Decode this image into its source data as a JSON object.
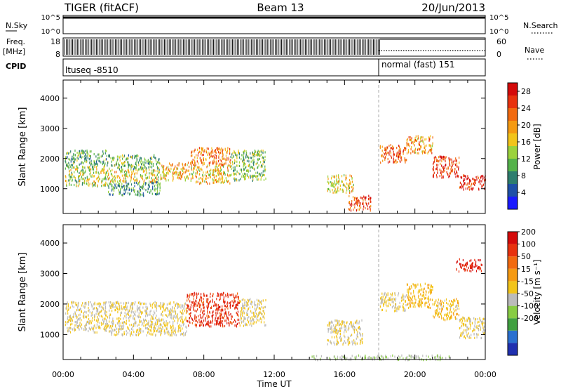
{
  "header": {
    "station": "TIGER (fitACF)",
    "beam": "Beam 13",
    "date": "20/Jun/2013"
  },
  "strip_panels": {
    "nsky": {
      "label": "N.Sky",
      "ticks": [
        "10^5",
        "10^0"
      ],
      "right_ticks": [
        "10^5",
        "10^0"
      ],
      "right_label": "N.Search"
    },
    "freq": {
      "label_top": "Freq.",
      "label_bottom": "[MHz]",
      "ticks": [
        "18",
        "8"
      ],
      "right_ticks": [
        "60",
        "0"
      ],
      "right_label": "Nave"
    },
    "cpid": {
      "label": "CPID",
      "segments": [
        {
          "name": "ltuseq -8510",
          "start_hour": 0,
          "end_hour": 18
        },
        {
          "name": "normal (fast) 151",
          "start_hour": 18,
          "end_hour": 24
        }
      ]
    }
  },
  "chart_data": [
    {
      "type": "heatmap",
      "title": "Power",
      "xlabel": "",
      "ylabel": "Slant Range [km]",
      "x_ticks": [
        "00:00",
        "04:00",
        "08:00",
        "12:00",
        "16:00",
        "20:00",
        "00:00"
      ],
      "x_range_hours": [
        0,
        24
      ],
      "y_ticks": [
        "1000",
        "2000",
        "3000",
        "4000"
      ],
      "y_range_km": [
        180,
        4600
      ],
      "colorbar": {
        "label": "Power [dB]",
        "ticks": [
          "4",
          "8",
          "12",
          "16",
          "20",
          "24",
          "28"
        ],
        "range": [
          0,
          30
        ],
        "colors": [
          "#1a1aff",
          "#1e50a8",
          "#2d7d6e",
          "#54b24a",
          "#9bd23c",
          "#f2c41a",
          "#f59a12",
          "#f26a0f",
          "#e8320e",
          "#d40a0a"
        ]
      },
      "cells": [
        {
          "x_range": [
            0.1,
            2.5
          ],
          "y_range": [
            1100,
            1800
          ],
          "value": 14
        },
        {
          "x_range": [
            0.1,
            2.5
          ],
          "y_range": [
            1800,
            2300
          ],
          "value": 10
        },
        {
          "x_range": [
            2.5,
            5.5
          ],
          "y_range": [
            1250,
            1650
          ],
          "value": 16
        },
        {
          "x_range": [
            2.5,
            5.5
          ],
          "y_range": [
            1650,
            2150
          ],
          "value": 11
        },
        {
          "x_range": [
            2.5,
            5.5
          ],
          "y_range": [
            800,
            1250
          ],
          "value": 9
        },
        {
          "x_range": [
            5.5,
            7.2
          ],
          "y_range": [
            1300,
            1900
          ],
          "value": 18
        },
        {
          "x_range": [
            7.2,
            9.5
          ],
          "y_range": [
            1800,
            2400
          ],
          "value": 21
        },
        {
          "x_range": [
            7.2,
            9.5
          ],
          "y_range": [
            1200,
            1800
          ],
          "value": 17
        },
        {
          "x_range": [
            9.5,
            11.5
          ],
          "y_range": [
            1300,
            2300
          ],
          "value": 12
        },
        {
          "x_range": [
            15.0,
            16.5
          ],
          "y_range": [
            900,
            1500
          ],
          "value": 16
        },
        {
          "x_range": [
            16.2,
            17.5
          ],
          "y_range": [
            300,
            800
          ],
          "value": 25
        },
        {
          "x_range": [
            18.0,
            19.5
          ],
          "y_range": [
            1900,
            2500
          ],
          "value": 24
        },
        {
          "x_range": [
            19.5,
            21.0
          ],
          "y_range": [
            2200,
            2800
          ],
          "value": 20
        },
        {
          "x_range": [
            21.0,
            22.5
          ],
          "y_range": [
            1400,
            2100
          ],
          "value": 26
        },
        {
          "x_range": [
            22.5,
            24.0
          ],
          "y_range": [
            1000,
            1500
          ],
          "value": 28
        }
      ]
    },
    {
      "type": "heatmap",
      "title": "Velocity",
      "xlabel": "Time UT",
      "ylabel": "Slant Range [km]",
      "x_ticks": [
        "00:00",
        "04:00",
        "08:00",
        "12:00",
        "16:00",
        "20:00",
        "00:00"
      ],
      "x_range_hours": [
        0,
        24
      ],
      "y_ticks": [
        "1000",
        "2000",
        "3000",
        "4000"
      ],
      "y_range_km": [
        180,
        4600
      ],
      "colorbar": {
        "label": "Velocity [m s^-1]",
        "ticks": [
          "200",
          "100",
          "50",
          "15",
          "-15",
          "-50",
          "-100",
          "-200"
        ],
        "range": [
          -250,
          250
        ],
        "colors": [
          "#2030b0",
          "#2a70d0",
          "#40a040",
          "#88cc44",
          "#bbbbbb",
          "#f2c41a",
          "#f59a12",
          "#f26a0f",
          "#e8320e",
          "#d40a0a"
        ]
      },
      "cells": [
        {
          "x_range": [
            0.1,
            2.5
          ],
          "y_range": [
            1100,
            2100
          ],
          "value": 0
        },
        {
          "x_range": [
            2.5,
            7.0
          ],
          "y_range": [
            1000,
            2100
          ],
          "value": 0
        },
        {
          "x_range": [
            7.0,
            10.0
          ],
          "y_range": [
            1300,
            2400
          ],
          "value": 180
        },
        {
          "x_range": [
            10.0,
            11.5
          ],
          "y_range": [
            1300,
            2200
          ],
          "value": 0
        },
        {
          "x_range": [
            15.0,
            17.0
          ],
          "y_range": [
            700,
            1500
          ],
          "value": 0
        },
        {
          "x_range": [
            14.0,
            22.0
          ],
          "y_range": [
            200,
            350
          ],
          "value": -40
        },
        {
          "x_range": [
            18.0,
            19.5
          ],
          "y_range": [
            1800,
            2400
          ],
          "value": 0
        },
        {
          "x_range": [
            19.5,
            21.0
          ],
          "y_range": [
            1900,
            2700
          ],
          "value": 40
        },
        {
          "x_range": [
            21.0,
            22.5
          ],
          "y_range": [
            1500,
            2200
          ],
          "value": 35
        },
        {
          "x_range": [
            22.5,
            24.0
          ],
          "y_range": [
            900,
            1600
          ],
          "value": 0
        },
        {
          "x_range": [
            22.3,
            23.8
          ],
          "y_range": [
            3100,
            3500
          ],
          "value": 200
        }
      ]
    }
  ],
  "colors": {
    "frame": "#000000",
    "background": "#ffffff"
  }
}
